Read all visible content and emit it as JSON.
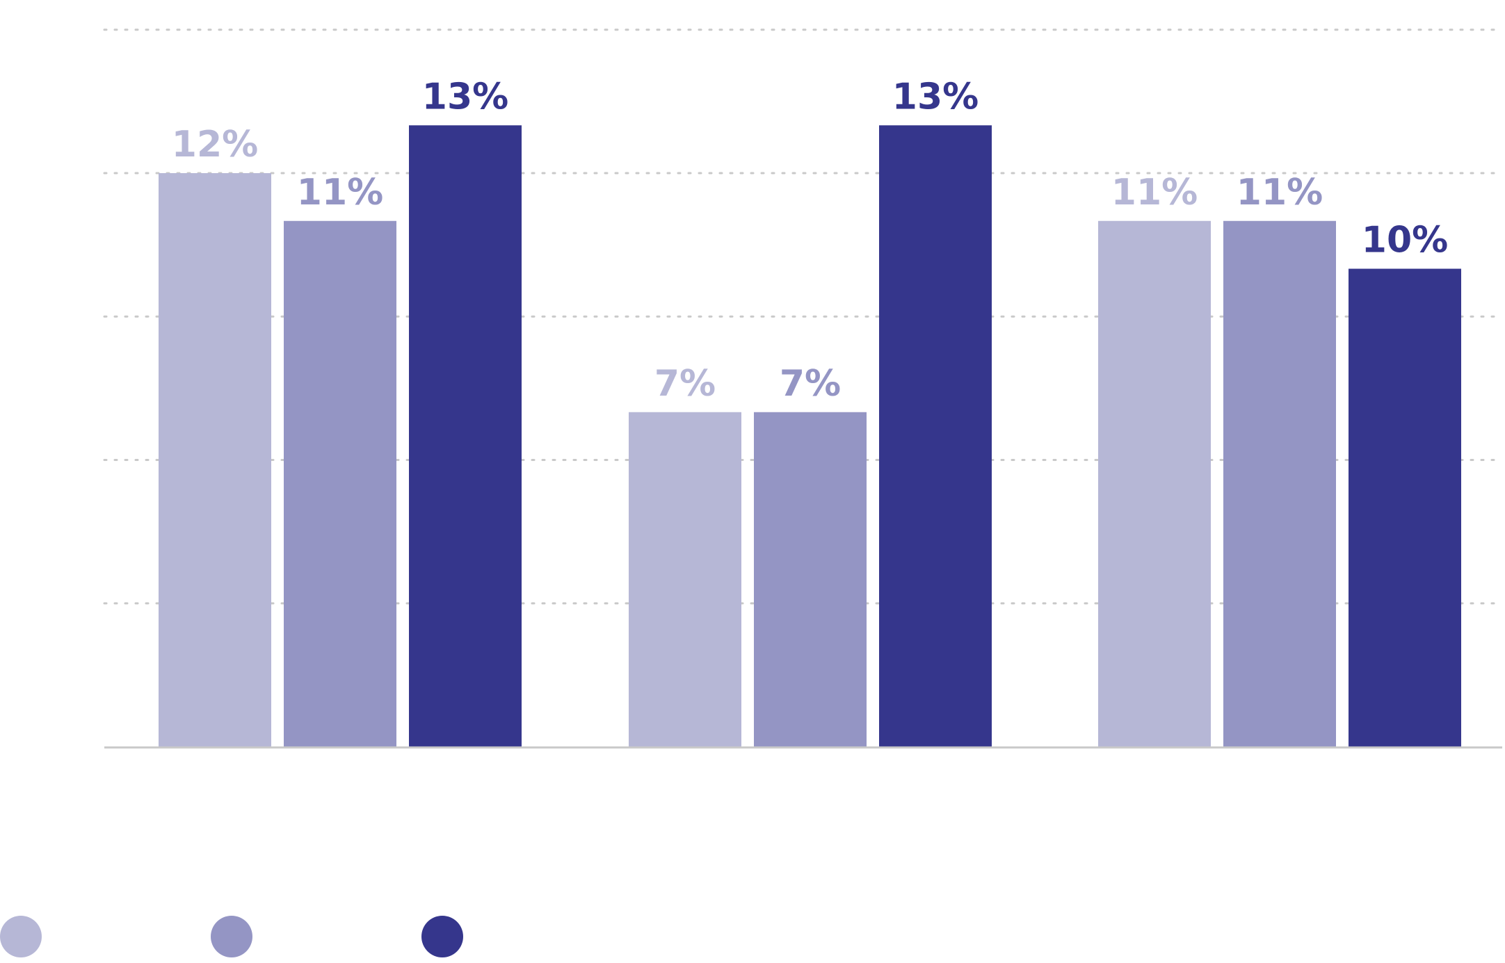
{
  "chart_data": {
    "type": "bar",
    "categories": [
      "",
      "",
      ""
    ],
    "series": [
      {
        "color": "#b6b7d6",
        "values": [
          12,
          7,
          11
        ],
        "labels": [
          "12%",
          "7%",
          "11%"
        ]
      },
      {
        "color": "#9495c4",
        "values": [
          11,
          7,
          11
        ],
        "labels": [
          "11%",
          "7%",
          "11%"
        ]
      },
      {
        "color": "#35368c",
        "values": [
          13,
          13,
          10
        ],
        "labels": [
          "13%",
          "13%",
          "10%"
        ]
      }
    ],
    "ylim": [
      0,
      15
    ],
    "ytick_step": 3,
    "grid": true,
    "grid_style": "dotted",
    "legend_placement": "bottom-left",
    "legend_marker": "circle",
    "title": "",
    "xlabel": "",
    "ylabel": ""
  }
}
